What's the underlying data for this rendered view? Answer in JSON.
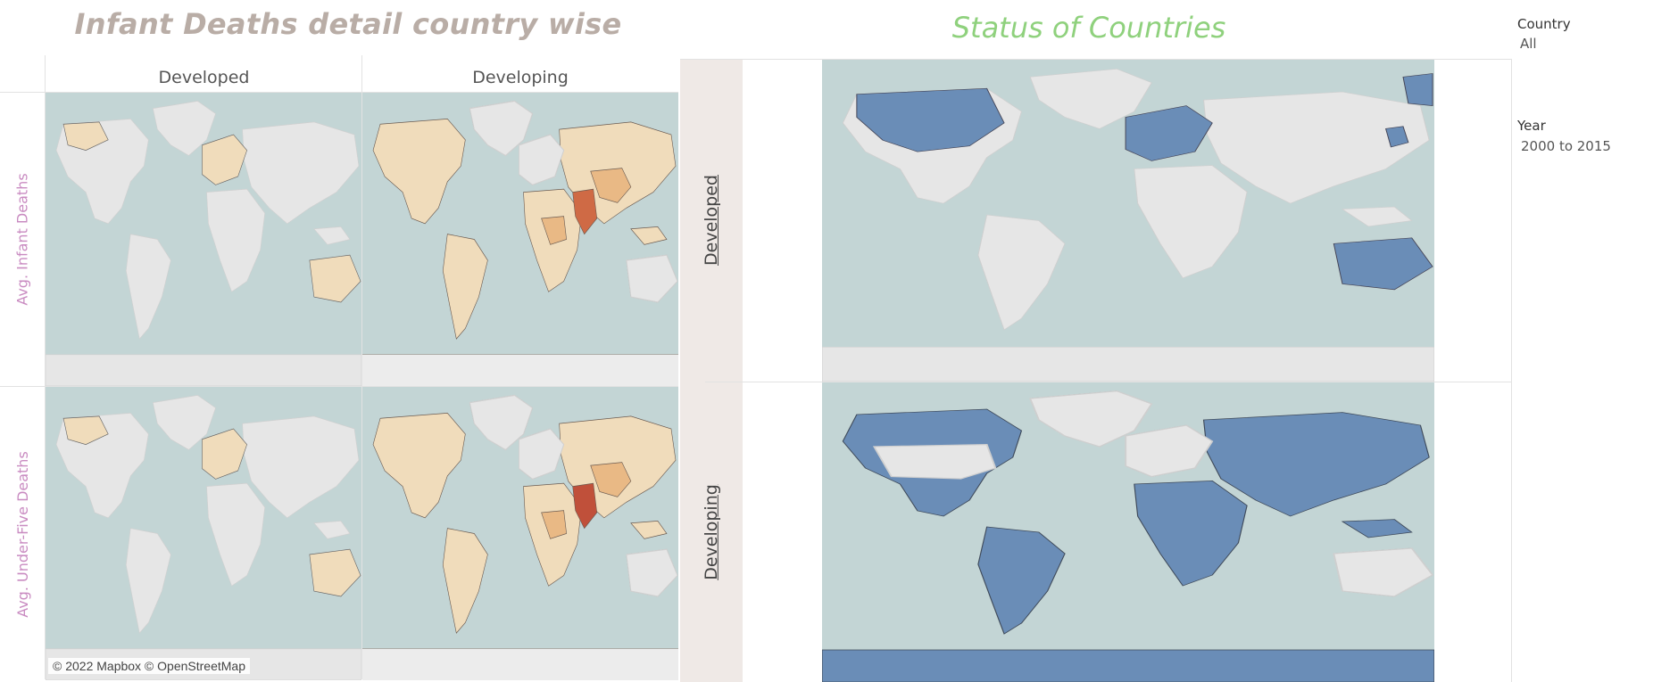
{
  "dashboard": {
    "left_title": "Infant Deaths detail country wise",
    "right_title": "Status of Countries"
  },
  "left_sheet": {
    "columns": [
      "Developed",
      "Developing"
    ],
    "rows": [
      "Avg. Infant Deaths",
      "Avg. Under-Five Deaths"
    ],
    "attribution": "© 2022 Mapbox © OpenStreetMap"
  },
  "right_sheet": {
    "rows": [
      "Developed",
      "Developing"
    ]
  },
  "filters": {
    "country": {
      "label": "Country",
      "value": "All"
    },
    "year": {
      "label": "Year",
      "value": "2000 to 2015"
    }
  },
  "colors": {
    "ocean": "#c3d5d5",
    "land_neutral": "#e6e6e6",
    "land_low": "#f0dcbb",
    "land_mid": "#e9b985",
    "land_high": "#cf6a45",
    "status_fill": "#6a8db7",
    "left_title": "#b9ada6",
    "right_title": "#8fd17d",
    "row_header": "#c98bc1"
  }
}
